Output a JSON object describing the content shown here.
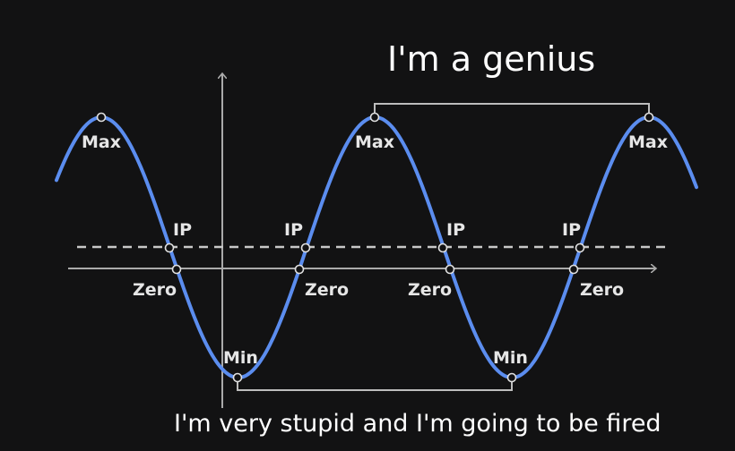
{
  "captions": {
    "top": "I'm a genius",
    "bottom": "I'm very stupid and I'm going to be fired"
  },
  "labels": {
    "max": "Max",
    "min": "Min",
    "ip": "IP",
    "zero": "Zero"
  },
  "colors": {
    "background": "#121213",
    "curve": "#5b8def",
    "axes": "#aaaaaa",
    "dashed_line": "#c8c8c8",
    "bracket": "#bdbdbd",
    "text": "#ffffff",
    "label_text": "#e6e6e6"
  },
  "icons": [
    "axis-arrow-icon"
  ]
}
